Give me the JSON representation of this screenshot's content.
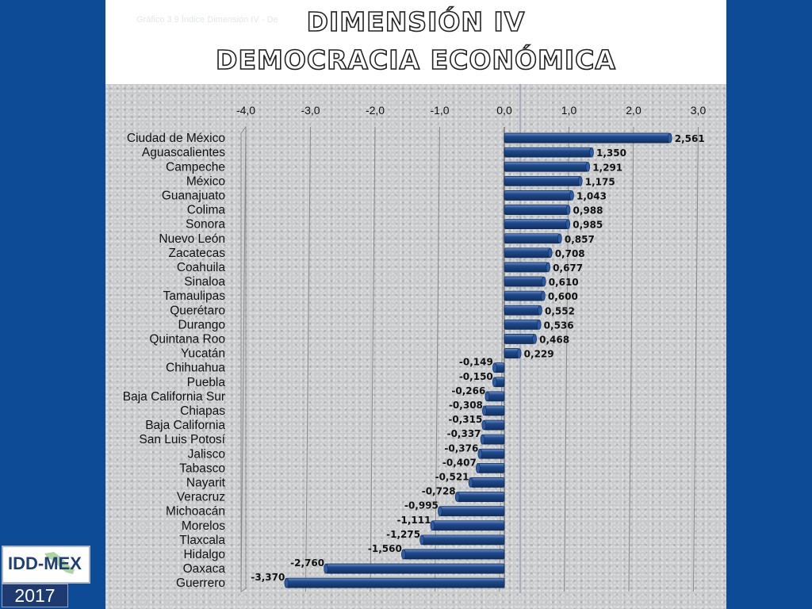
{
  "header": {
    "faint_subtitle": "Gráfico 3.9   Índice Dimensión IV -  De",
    "title_line1": "DIMENSIÓN  IV",
    "title_line2": "DEMOCRACIA  ECONÓMICA"
  },
  "logo": {
    "text": "IDD-MEX",
    "year": "2017"
  },
  "colors": {
    "bar": "#1f4a8f",
    "bar_highlight": "#6f92c9",
    "grid": "#8a8a8a",
    "background": "#0e4b97"
  },
  "chart_data": {
    "type": "bar",
    "orientation": "horizontal",
    "categories": [
      "Ciudad de México",
      "Aguascalientes",
      "Campeche",
      "México",
      "Guanajuato",
      "Colima",
      "Sonora",
      "Nuevo León",
      "Zacatecas",
      "Coahuila",
      "Sinaloa",
      "Tamaulipas",
      "Querétaro",
      "Durango",
      "Quintana Roo",
      "Yucatán",
      "Chihuahua",
      "Puebla",
      "Baja California Sur",
      "Chiapas",
      "Baja California",
      "San Luis Potosí",
      "Jalisco",
      "Tabasco",
      "Nayarit",
      "Veracruz",
      "Michoacán",
      "Morelos",
      "Tlaxcala",
      "Hidalgo",
      "Oaxaca",
      "Guerrero"
    ],
    "values": [
      2.561,
      1.35,
      1.291,
      1.175,
      1.043,
      0.988,
      0.985,
      0.857,
      0.708,
      0.677,
      0.61,
      0.6,
      0.552,
      0.536,
      0.468,
      0.229,
      -0.149,
      -0.15,
      -0.266,
      -0.308,
      -0.315,
      -0.337,
      -0.376,
      -0.407,
      -0.521,
      -0.728,
      -0.995,
      -1.111,
      -1.275,
      -1.56,
      -2.76,
      -3.37
    ],
    "value_labels": [
      "2,561",
      "1,350",
      "1,291",
      "1,175",
      "1,043",
      "0,988",
      "0,985",
      "0,857",
      "0,708",
      "0,677",
      "0,610",
      "0,600",
      "0,552",
      "0,536",
      "0,468",
      "0,229",
      "-0,149",
      "-0,150",
      "-0,266",
      "-0,308",
      "-0,315",
      "-0,337",
      "-0,376",
      "-0,407",
      "-0,521",
      "-0,728",
      "-0,995",
      "-1,111",
      "-1,275",
      "-1,560",
      "-2,760",
      "-3,370"
    ],
    "x_ticks": [
      -4,
      -3,
      -2,
      -1,
      0,
      1,
      2,
      3
    ],
    "x_tick_labels": [
      "-4,0",
      "-3,0",
      "-2,0",
      "-1,0",
      "0,0",
      "1,0",
      "2,0",
      "3,0"
    ],
    "xlim": [
      -4,
      3
    ],
    "xaxis_position": "top",
    "grid": true
  }
}
